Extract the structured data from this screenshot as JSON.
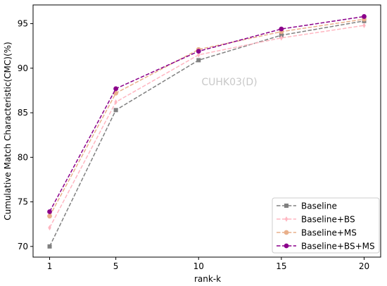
{
  "chart_data": {
    "type": "line",
    "title": "",
    "annotation": "CUHK03(D)",
    "xlabel": "rank-k",
    "ylabel": "Cumulative Match Characteristic(CMC)(%)",
    "x": [
      1,
      5,
      10,
      15,
      20
    ],
    "xticks": [
      1,
      5,
      10,
      15,
      20
    ],
    "yticks": [
      70,
      75,
      80,
      85,
      90,
      95
    ],
    "xlim": [
      0,
      21
    ],
    "ylim": [
      68.8,
      97.1
    ],
    "grid": false,
    "legend_position": "lower-right",
    "series": [
      {
        "name": "Baseline",
        "color": "#808080",
        "marker": "square",
        "values": [
          70.0,
          85.3,
          90.9,
          93.7,
          95.3
        ]
      },
      {
        "name": "Baseline+BS",
        "color": "#ffb6c1",
        "marker": "diamond",
        "values": [
          72.1,
          86.2,
          91.5,
          93.4,
          94.8
        ]
      },
      {
        "name": "Baseline+MS",
        "color": "#e9b08b",
        "marker": "circle",
        "values": [
          73.4,
          87.2,
          92.1,
          94.1,
          95.5
        ]
      },
      {
        "name": "Baseline+BS+MS",
        "color": "#8b008b",
        "marker": "circle",
        "values": [
          73.9,
          87.7,
          91.9,
          94.4,
          95.8
        ]
      }
    ]
  }
}
